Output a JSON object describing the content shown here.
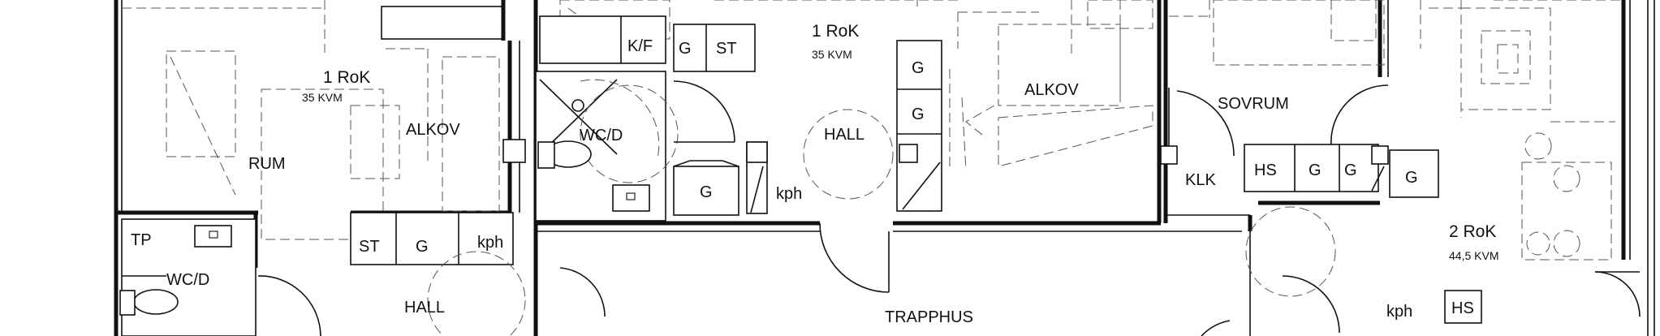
{
  "units": [
    {
      "rooms": "1 RoK",
      "area": "35 KVM"
    },
    {
      "rooms": "1 RoK",
      "area": "35  KVM"
    },
    {
      "rooms": "2 RoK",
      "area": "44,5 KVM"
    }
  ],
  "rooms": {
    "rum": "RUM",
    "alkov_left": "ALKOV",
    "wcd_left": "WC/D",
    "hall_left": "HALL",
    "wcd_mid": "WC/D",
    "hall_mid": "HALL",
    "alkov_mid": "ALKOV",
    "sovrum": "SOVRUM",
    "klk": "KLK",
    "trapphus": "TRAPPHUS"
  },
  "fixtures": {
    "tp": "TP",
    "st_left": "ST",
    "g_left": "G",
    "kph_left": "kph",
    "kf": "K/F",
    "g_top": "G",
    "st_top": "ST",
    "g_kitchen": "G",
    "kph_mid": "kph",
    "g_col_top": "G",
    "g_col_bottom": "G",
    "hs_sov": "HS",
    "g_sov_1": "G",
    "g_sov_2": "G",
    "g_sov_3": "G",
    "kph_right": "kph",
    "hs_right": "HS"
  }
}
